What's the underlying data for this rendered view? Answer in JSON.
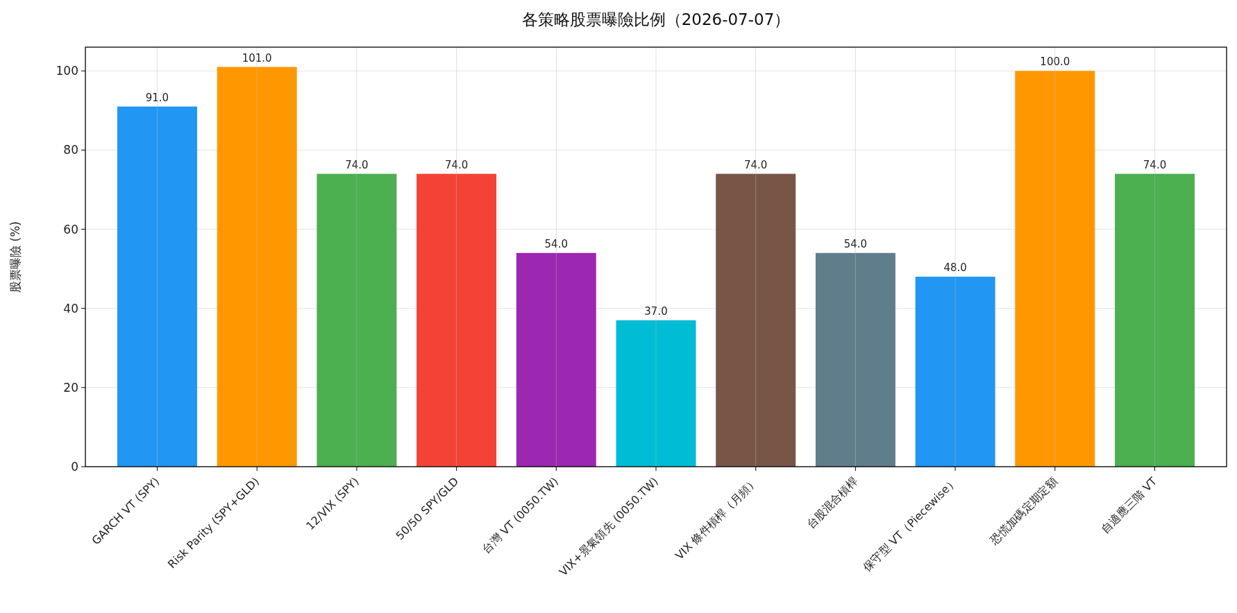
{
  "chart_data": {
    "type": "bar",
    "title": "各策略股票曝險比例（2026-07-07）",
    "ylabel": "股票曝險 (%)",
    "categories": [
      "GARCH VT (SPY)",
      "Risk Parity (SPY+GLD)",
      "12/VIX (SPY)",
      "50/50 SPY/GLD",
      "台灣 VT (0050.TW)",
      "VIX+景氣領先 (0050.TW)",
      "VIX 條件槓桿（月頻）",
      "台股混合槓桿",
      "保守型 VT（Piecewise）",
      "恐慌加碼定期定額",
      "自適應三階 VT"
    ],
    "values": [
      91,
      101,
      74,
      74,
      54,
      37,
      74,
      54,
      48,
      100,
      74
    ],
    "value_labels": [
      "91.0",
      "101.0",
      "74.0",
      "74.0",
      "54.0",
      "37.0",
      "74.0",
      "54.0",
      "48.0",
      "100.0",
      "74.0"
    ],
    "colors": [
      "#2196f3",
      "#ff9800",
      "#4caf50",
      "#f44336",
      "#9c27b0",
      "#00bcd4",
      "#795548",
      "#607d8b",
      "#2196f3",
      "#ff9800",
      "#4caf50"
    ],
    "ylim": [
      0,
      106
    ],
    "yticks": [
      0,
      20,
      40,
      60,
      80,
      100
    ],
    "grid": true
  }
}
